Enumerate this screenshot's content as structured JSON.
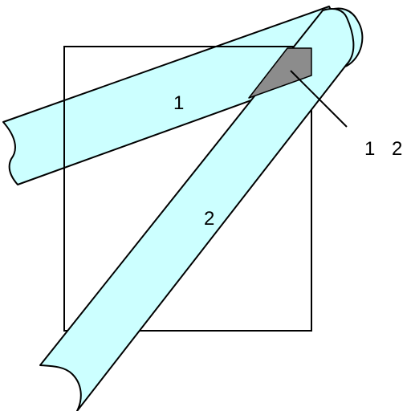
{
  "labels": {
    "strip_1": "1",
    "strip_2": "2",
    "callout": "1 2"
  },
  "colors": {
    "strip_fill": "#ccffff",
    "overlap_fill": "#8c8c8c",
    "stroke": "#000000",
    "background": "#ffffff"
  }
}
